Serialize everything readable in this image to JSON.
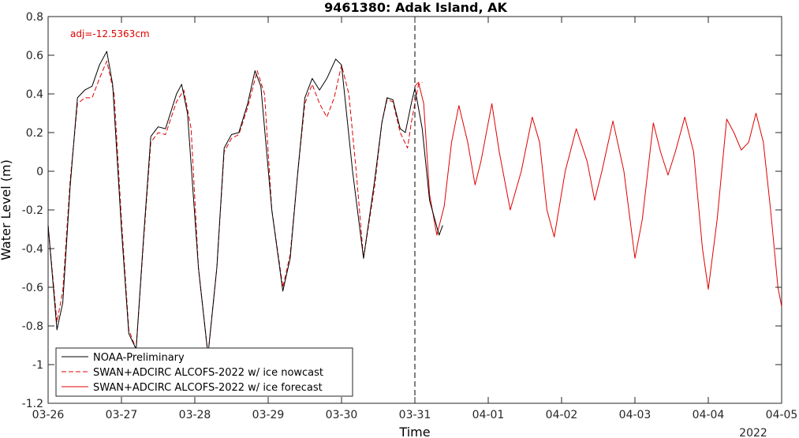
{
  "chart_data": {
    "type": "line",
    "title": "9461380: Adak Island, AK",
    "xlabel": "Time",
    "ylabel": "Water Level (m)",
    "year_label": "2022",
    "annotation": "adj=-12.5363cm",
    "x_tick_labels": [
      "03-26",
      "03-27",
      "03-28",
      "03-29",
      "03-30",
      "03-31",
      "04-01",
      "04-02",
      "04-03",
      "04-04",
      "04-05"
    ],
    "y_tick_labels": [
      "0.8",
      "0.6",
      "0.4",
      "0.2",
      "0",
      "-0.2",
      "-0.4",
      "-0.6",
      "-0.8",
      "-1",
      "-1.2"
    ],
    "xlim": [
      0,
      10
    ],
    "ylim": [
      -1.2,
      0.8
    ],
    "nowcast_end_day": 5.0,
    "grid": false,
    "legend_position": "bottom-left",
    "series": [
      {
        "name": "NOAA-Preliminary",
        "color": "#000000",
        "dash": "solid",
        "points": [
          [
            0,
            -0.28
          ],
          [
            0.12,
            -0.82
          ],
          [
            0.2,
            -0.68
          ],
          [
            0.3,
            -0.08
          ],
          [
            0.4,
            0.38
          ],
          [
            0.5,
            0.42
          ],
          [
            0.6,
            0.44
          ],
          [
            0.7,
            0.55
          ],
          [
            0.8,
            0.62
          ],
          [
            0.88,
            0.45
          ],
          [
            1.0,
            -0.3
          ],
          [
            1.1,
            -0.84
          ],
          [
            1.2,
            -0.92
          ],
          [
            1.3,
            -0.35
          ],
          [
            1.4,
            0.18
          ],
          [
            1.5,
            0.23
          ],
          [
            1.6,
            0.22
          ],
          [
            1.75,
            0.4
          ],
          [
            1.82,
            0.45
          ],
          [
            1.9,
            0.3
          ],
          [
            2.05,
            -0.5
          ],
          [
            2.18,
            -0.95
          ],
          [
            2.3,
            -0.5
          ],
          [
            2.4,
            0.12
          ],
          [
            2.5,
            0.19
          ],
          [
            2.6,
            0.2
          ],
          [
            2.72,
            0.35
          ],
          [
            2.82,
            0.52
          ],
          [
            2.9,
            0.44
          ],
          [
            3.05,
            -0.2
          ],
          [
            3.2,
            -0.62
          ],
          [
            3.3,
            -0.45
          ],
          [
            3.4,
            -0.02
          ],
          [
            3.5,
            0.38
          ],
          [
            3.6,
            0.48
          ],
          [
            3.7,
            0.42
          ],
          [
            3.8,
            0.48
          ],
          [
            3.92,
            0.58
          ],
          [
            4.0,
            0.55
          ],
          [
            4.15,
            0.0
          ],
          [
            4.3,
            -0.45
          ],
          [
            4.45,
            -0.05
          ],
          [
            4.55,
            0.25
          ],
          [
            4.62,
            0.38
          ],
          [
            4.7,
            0.37
          ],
          [
            4.8,
            0.22
          ],
          [
            4.87,
            0.2
          ],
          [
            4.95,
            0.35
          ],
          [
            5.0,
            0.43
          ],
          [
            5.1,
            0.22
          ],
          [
            5.2,
            -0.15
          ],
          [
            5.33,
            -0.33
          ],
          [
            5.38,
            -0.28
          ]
        ]
      },
      {
        "name": "SWAN+ADCIRC ALCOFS-2022 w/ ice nowcast",
        "color": "#e00000",
        "dash": "dashed",
        "points": [
          [
            0,
            -0.28
          ],
          [
            0.12,
            -0.78
          ],
          [
            0.2,
            -0.62
          ],
          [
            0.3,
            -0.05
          ],
          [
            0.4,
            0.35
          ],
          [
            0.5,
            0.38
          ],
          [
            0.6,
            0.38
          ],
          [
            0.7,
            0.48
          ],
          [
            0.8,
            0.57
          ],
          [
            0.9,
            0.4
          ],
          [
            1.0,
            -0.25
          ],
          [
            1.1,
            -0.82
          ],
          [
            1.2,
            -0.92
          ],
          [
            1.3,
            -0.37
          ],
          [
            1.4,
            0.15
          ],
          [
            1.5,
            0.2
          ],
          [
            1.6,
            0.19
          ],
          [
            1.75,
            0.36
          ],
          [
            1.85,
            0.42
          ],
          [
            1.95,
            0.22
          ],
          [
            2.05,
            -0.5
          ],
          [
            2.18,
            -0.95
          ],
          [
            2.3,
            -0.5
          ],
          [
            2.4,
            0.1
          ],
          [
            2.5,
            0.17
          ],
          [
            2.6,
            0.19
          ],
          [
            2.72,
            0.33
          ],
          [
            2.85,
            0.52
          ],
          [
            2.95,
            0.4
          ],
          [
            3.05,
            -0.2
          ],
          [
            3.2,
            -0.6
          ],
          [
            3.3,
            -0.43
          ],
          [
            3.4,
            -0.02
          ],
          [
            3.5,
            0.35
          ],
          [
            3.6,
            0.45
          ],
          [
            3.7,
            0.35
          ],
          [
            3.8,
            0.28
          ],
          [
            3.9,
            0.38
          ],
          [
            4.0,
            0.55
          ],
          [
            4.1,
            0.4
          ],
          [
            4.2,
            0.0
          ],
          [
            4.3,
            -0.45
          ],
          [
            4.45,
            -0.08
          ],
          [
            4.55,
            0.25
          ],
          [
            4.62,
            0.37
          ],
          [
            4.7,
            0.36
          ],
          [
            4.8,
            0.2
          ],
          [
            4.9,
            0.12
          ],
          [
            4.95,
            0.25
          ],
          [
            5.05,
            0.45
          ],
          [
            5.1,
            0.46
          ]
        ]
      },
      {
        "name": "SWAN+ADCIRC ALCOFS-2022 w/ ice forecast",
        "color": "#e00000",
        "dash": "solid",
        "points": [
          [
            5.0,
            0.44
          ],
          [
            5.05,
            0.46
          ],
          [
            5.12,
            0.35
          ],
          [
            5.2,
            -0.12
          ],
          [
            5.3,
            -0.33
          ],
          [
            5.4,
            -0.18
          ],
          [
            5.5,
            0.15
          ],
          [
            5.6,
            0.34
          ],
          [
            5.72,
            0.15
          ],
          [
            5.82,
            -0.07
          ],
          [
            5.9,
            0.05
          ],
          [
            6.05,
            0.35
          ],
          [
            6.15,
            0.1
          ],
          [
            6.3,
            -0.2
          ],
          [
            6.45,
            0.0
          ],
          [
            6.6,
            0.28
          ],
          [
            6.7,
            0.15
          ],
          [
            6.8,
            -0.2
          ],
          [
            6.9,
            -0.34
          ],
          [
            7.05,
            0.0
          ],
          [
            7.2,
            0.22
          ],
          [
            7.35,
            0.05
          ],
          [
            7.45,
            -0.15
          ],
          [
            7.55,
            0.0
          ],
          [
            7.7,
            0.26
          ],
          [
            7.85,
            0.0
          ],
          [
            8.0,
            -0.45
          ],
          [
            8.1,
            -0.25
          ],
          [
            8.25,
            0.25
          ],
          [
            8.35,
            0.1
          ],
          [
            8.45,
            -0.02
          ],
          [
            8.55,
            0.1
          ],
          [
            8.68,
            0.28
          ],
          [
            8.8,
            0.1
          ],
          [
            8.92,
            -0.4
          ],
          [
            9.0,
            -0.61
          ],
          [
            9.12,
            -0.25
          ],
          [
            9.25,
            0.27
          ],
          [
            9.35,
            0.2
          ],
          [
            9.45,
            0.11
          ],
          [
            9.55,
            0.15
          ],
          [
            9.65,
            0.3
          ],
          [
            9.75,
            0.15
          ],
          [
            9.85,
            -0.2
          ],
          [
            9.95,
            -0.6
          ],
          [
            10.0,
            -0.7
          ]
        ]
      }
    ]
  }
}
